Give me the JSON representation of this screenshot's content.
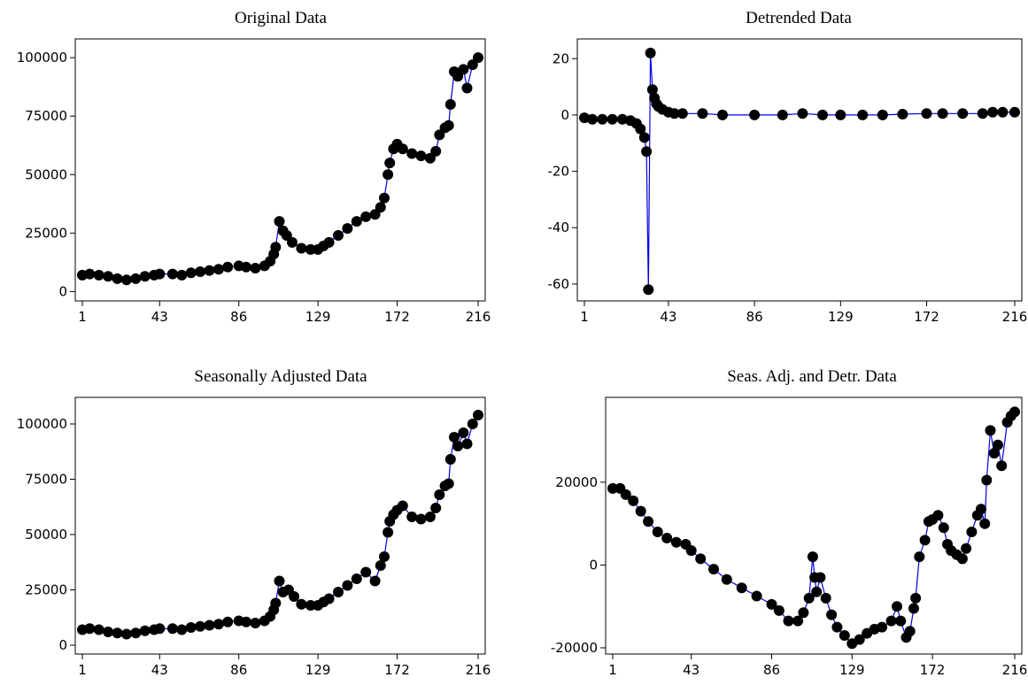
{
  "colors": {
    "line": "#0000e6",
    "marker": "#000000"
  },
  "chart_data": [
    {
      "type": "line",
      "title": "Original Data",
      "x_ticks": [
        1,
        43,
        86,
        129,
        172,
        216
      ],
      "xlim": [
        1,
        216
      ],
      "y_ticks": [
        0,
        25000,
        50000,
        75000,
        100000
      ],
      "ylim": [
        -4000,
        108000
      ],
      "grid": false,
      "markers": true,
      "x": [
        1,
        5,
        10,
        15,
        20,
        25,
        30,
        35,
        40,
        43,
        50,
        55,
        60,
        65,
        70,
        75,
        80,
        86,
        90,
        95,
        100,
        103,
        105,
        106,
        108,
        110,
        112,
        115,
        120,
        125,
        129,
        132,
        135,
        140,
        145,
        150,
        155,
        160,
        163,
        165,
        167,
        168,
        170,
        172,
        175,
        180,
        185,
        190,
        193,
        195,
        198,
        200,
        201,
        203,
        205,
        208,
        210,
        213,
        216
      ],
      "y": [
        7000,
        7500,
        7000,
        6500,
        5500,
        5000,
        5500,
        6500,
        7000,
        7500,
        7500,
        7000,
        8000,
        8500,
        9000,
        9500,
        10500,
        11000,
        10500,
        10000,
        11000,
        13000,
        16000,
        19000,
        30000,
        26000,
        24000,
        21000,
        18500,
        18000,
        18000,
        19500,
        21000,
        24000,
        27000,
        30000,
        32000,
        33000,
        36000,
        40000,
        50000,
        55000,
        61000,
        63000,
        61000,
        59000,
        58000,
        57000,
        60000,
        67000,
        70000,
        71000,
        80000,
        94000,
        92000,
        95000,
        87000,
        97000,
        100000
      ]
    },
    {
      "type": "line",
      "title": "Detrended Data",
      "x_ticks": [
        1,
        43,
        86,
        129,
        172,
        216
      ],
      "xlim": [
        1,
        216
      ],
      "y_ticks": [
        -60,
        -40,
        -20,
        0,
        20
      ],
      "ylim": [
        -66,
        27
      ],
      "grid": false,
      "markers": true,
      "x": [
        1,
        5,
        10,
        15,
        20,
        24,
        27,
        29,
        31,
        32,
        33,
        34,
        35,
        36,
        37,
        38,
        40,
        43,
        46,
        50,
        60,
        70,
        86,
        100,
        110,
        120,
        129,
        140,
        150,
        160,
        172,
        180,
        190,
        200,
        205,
        210,
        216
      ],
      "y": [
        -1,
        -1.5,
        -1.5,
        -1.5,
        -1.5,
        -2,
        -3,
        -5,
        -8,
        -13,
        -62,
        22,
        9,
        6,
        4,
        3,
        2,
        1,
        0.5,
        0.5,
        0.5,
        0,
        0,
        0,
        0.5,
        0,
        0,
        0,
        0,
        0.3,
        0.5,
        0.5,
        0.5,
        0.5,
        1,
        1,
        1
      ]
    },
    {
      "type": "line",
      "title": "Seasonally Adjusted Data",
      "x_ticks": [
        1,
        43,
        86,
        129,
        172,
        216
      ],
      "xlim": [
        1,
        216
      ],
      "y_ticks": [
        0,
        25000,
        50000,
        75000,
        100000
      ],
      "ylim": [
        -4000,
        112000
      ],
      "grid": false,
      "markers": true,
      "x": [
        1,
        5,
        10,
        15,
        20,
        25,
        30,
        35,
        40,
        43,
        50,
        55,
        60,
        65,
        70,
        75,
        80,
        86,
        90,
        95,
        100,
        103,
        105,
        106,
        108,
        110,
        113,
        116,
        120,
        125,
        129,
        132,
        135,
        140,
        145,
        150,
        155,
        160,
        163,
        165,
        167,
        168,
        170,
        172,
        175,
        180,
        185,
        190,
        193,
        195,
        198,
        200,
        201,
        203,
        205,
        208,
        210,
        213,
        216
      ],
      "y": [
        7000,
        7500,
        7000,
        6000,
        5500,
        5000,
        5500,
        6500,
        7000,
        7500,
        7500,
        7000,
        8000,
        8500,
        9000,
        9500,
        10500,
        11000,
        10500,
        10000,
        11000,
        13000,
        16000,
        19000,
        29000,
        24000,
        25000,
        22000,
        18500,
        18000,
        18000,
        19500,
        21000,
        24000,
        27000,
        30000,
        33000,
        29000,
        36000,
        40000,
        51000,
        56000,
        59000,
        61000,
        63000,
        58000,
        57000,
        58000,
        62000,
        68000,
        72000,
        73000,
        84000,
        94000,
        90000,
        96000,
        91000,
        100000,
        104000
      ]
    },
    {
      "type": "line",
      "title": "Seas. Adj. and Detr. Data",
      "x_ticks": [
        1,
        43,
        86,
        129,
        172,
        216
      ],
      "xlim": [
        1,
        216
      ],
      "y_ticks": [
        -20000,
        0,
        20000
      ],
      "ylim": [
        -21500,
        40500
      ],
      "grid": false,
      "markers": true,
      "x": [
        1,
        5,
        8,
        12,
        16,
        20,
        25,
        30,
        35,
        40,
        43,
        48,
        55,
        62,
        70,
        78,
        86,
        90,
        95,
        100,
        103,
        106,
        108,
        109,
        110,
        112,
        115,
        118,
        121,
        125,
        129,
        133,
        137,
        141,
        145,
        150,
        153,
        155,
        158,
        160,
        162,
        163,
        165,
        168,
        170,
        172,
        175,
        178,
        180,
        182,
        185,
        188,
        190,
        193,
        196,
        198,
        200,
        201,
        203,
        205,
        207,
        209,
        212,
        214,
        216
      ],
      "y": [
        18500,
        18500,
        17000,
        15500,
        13000,
        10500,
        8000,
        6500,
        5500,
        5000,
        3500,
        1500,
        -1000,
        -3500,
        -5500,
        -7500,
        -9500,
        -11000,
        -13500,
        -13500,
        -11500,
        -8000,
        2000,
        -3000,
        -6500,
        -3000,
        -8000,
        -12000,
        -15000,
        -17000,
        -19000,
        -18000,
        -16500,
        -15500,
        -15000,
        -13500,
        -10000,
        -13500,
        -17500,
        -16000,
        -10500,
        -8000,
        2000,
        6000,
        10500,
        11000,
        12000,
        9000,
        5000,
        3500,
        2500,
        1500,
        4000,
        8000,
        12000,
        13500,
        10000,
        20500,
        32500,
        27000,
        29000,
        24000,
        34500,
        36000,
        37000
      ]
    }
  ]
}
